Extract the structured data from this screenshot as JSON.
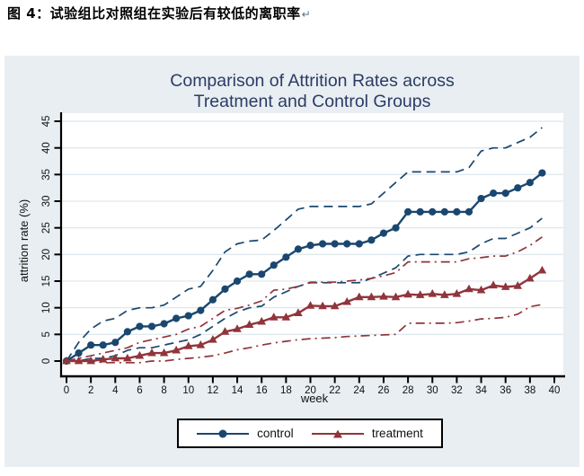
{
  "document": {
    "caption": "图 4：试验组比对照组在实验后有较低的离职率",
    "paragraph_mark": "↵"
  },
  "chart": {
    "title_line1": "Comparison of Attrition Rates across",
    "title_line2": "Treatment and Control Groups",
    "ylabel": "attrition rate (%)",
    "xlabel": "week",
    "background_color": "#e8eef1",
    "plot_background_color": "#ffffff",
    "title_color": "#2c3b66",
    "legend": [
      {
        "label": "control",
        "marker": "circle",
        "color": "#1a476f"
      },
      {
        "label": "treatment",
        "marker": "triangle",
        "color": "#90353b"
      }
    ]
  },
  "chart_data": {
    "type": "line",
    "title": "Comparison of Attrition Rates across Treatment and Control Groups",
    "xlabel": "week",
    "ylabel": "attrition rate (%)",
    "xlim": [
      -1,
      41
    ],
    "ylim": [
      -2.5,
      46
    ],
    "grid": "horizontal",
    "legend_position": "bottom",
    "x_ticks": [
      0,
      2,
      4,
      6,
      8,
      10,
      12,
      14,
      16,
      18,
      20,
      22,
      24,
      26,
      28,
      30,
      32,
      34,
      36,
      38,
      40
    ],
    "y_ticks": [
      0,
      5,
      10,
      15,
      20,
      25,
      30,
      35,
      40,
      45
    ],
    "x": [
      0,
      1,
      2,
      3,
      4,
      5,
      6,
      7,
      8,
      9,
      10,
      11,
      12,
      13,
      14,
      15,
      16,
      17,
      18,
      19,
      20,
      21,
      22,
      23,
      24,
      25,
      26,
      27,
      28,
      29,
      30,
      31,
      32,
      33,
      34,
      35,
      36,
      37,
      38,
      39
    ],
    "series": [
      {
        "name": "control",
        "color": "#1a476f",
        "style": "solid",
        "marker": "circle",
        "values": [
          0,
          1.5,
          3,
          3,
          3.5,
          5.5,
          6.5,
          6.5,
          7,
          8,
          8.5,
          9.5,
          11.5,
          13.5,
          15,
          16.3,
          16.3,
          18,
          19.5,
          21,
          21.7,
          22,
          22,
          22,
          22,
          22.7,
          24,
          25,
          28,
          28,
          28,
          28,
          28,
          28,
          30.5,
          31.5,
          31.5,
          32.5,
          33.5,
          35.3
        ]
      },
      {
        "name": "treatment",
        "color": "#90353b",
        "style": "solid",
        "marker": "triangle",
        "values": [
          0,
          0,
          0,
          0.3,
          0.5,
          0.5,
          1,
          1.5,
          1.5,
          2,
          2.8,
          3,
          4,
          5.5,
          6,
          6.8,
          7.4,
          8.2,
          8.2,
          9,
          10.4,
          10.3,
          10.3,
          11.1,
          12,
          12,
          12.1,
          12,
          12.5,
          12.4,
          12.6,
          12.4,
          12.6,
          13.5,
          13.3,
          14.2,
          13.9,
          14.1,
          15.5,
          17
        ]
      },
      {
        "name": "control 95% CI upper",
        "color": "#1a476f",
        "style": "dashed",
        "marker": "none",
        "values": [
          0,
          3.5,
          6,
          7.5,
          8,
          9.5,
          10,
          10,
          10.5,
          12,
          13.5,
          14,
          17,
          20.5,
          22,
          22.5,
          22.7,
          24.5,
          26.5,
          28.5,
          29,
          29,
          29,
          29,
          29,
          29.5,
          31.5,
          33.5,
          35.5,
          35.5,
          35.5,
          35.5,
          35.5,
          36.3,
          39.4,
          40,
          40,
          41,
          42,
          43.8
        ]
      },
      {
        "name": "control 95% CI lower",
        "color": "#1a476f",
        "style": "dashed",
        "marker": "none",
        "values": [
          0,
          0,
          0.5,
          0.5,
          1,
          2,
          2.5,
          2.5,
          3,
          3.5,
          4,
          5,
          6.5,
          8,
          9.2,
          10,
          10.3,
          12,
          13,
          14,
          14.7,
          14.7,
          14.7,
          14.7,
          14.7,
          15.5,
          16.5,
          17.5,
          19.7,
          20,
          20,
          20,
          20,
          20.5,
          22,
          23,
          23,
          24,
          25,
          26.8
        ]
      },
      {
        "name": "treatment 95% CI upper",
        "color": "#90353b",
        "style": "dash-dot",
        "marker": "none",
        "values": [
          0,
          0.5,
          1,
          1.5,
          2,
          2.5,
          3.5,
          4,
          4.5,
          5,
          6,
          6.5,
          8,
          9.5,
          9.9,
          10.5,
          11.3,
          13.3,
          13.5,
          14,
          14.8,
          14.8,
          14.8,
          15,
          15.2,
          15.5,
          16,
          16.6,
          18.6,
          18.6,
          18.6,
          18.6,
          18.6,
          19.2,
          19.4,
          19.7,
          19.7,
          20.5,
          21.7,
          23.3
        ]
      },
      {
        "name": "treatment 95% CI lower",
        "color": "#90353b",
        "style": "dash-dot",
        "marker": "none",
        "values": [
          0,
          0,
          0,
          -0.3,
          -0.3,
          -0.3,
          -0.3,
          0,
          0,
          0.3,
          0.5,
          0.7,
          1,
          1.5,
          2.1,
          2.5,
          3,
          3.4,
          3.7,
          4,
          4.2,
          4.3,
          4.4,
          4.6,
          4.7,
          4.8,
          4.9,
          5,
          7.1,
          7.1,
          7.1,
          7.1,
          7.2,
          7.5,
          7.9,
          8,
          8.2,
          8.8,
          10.2,
          10.6
        ]
      }
    ]
  }
}
